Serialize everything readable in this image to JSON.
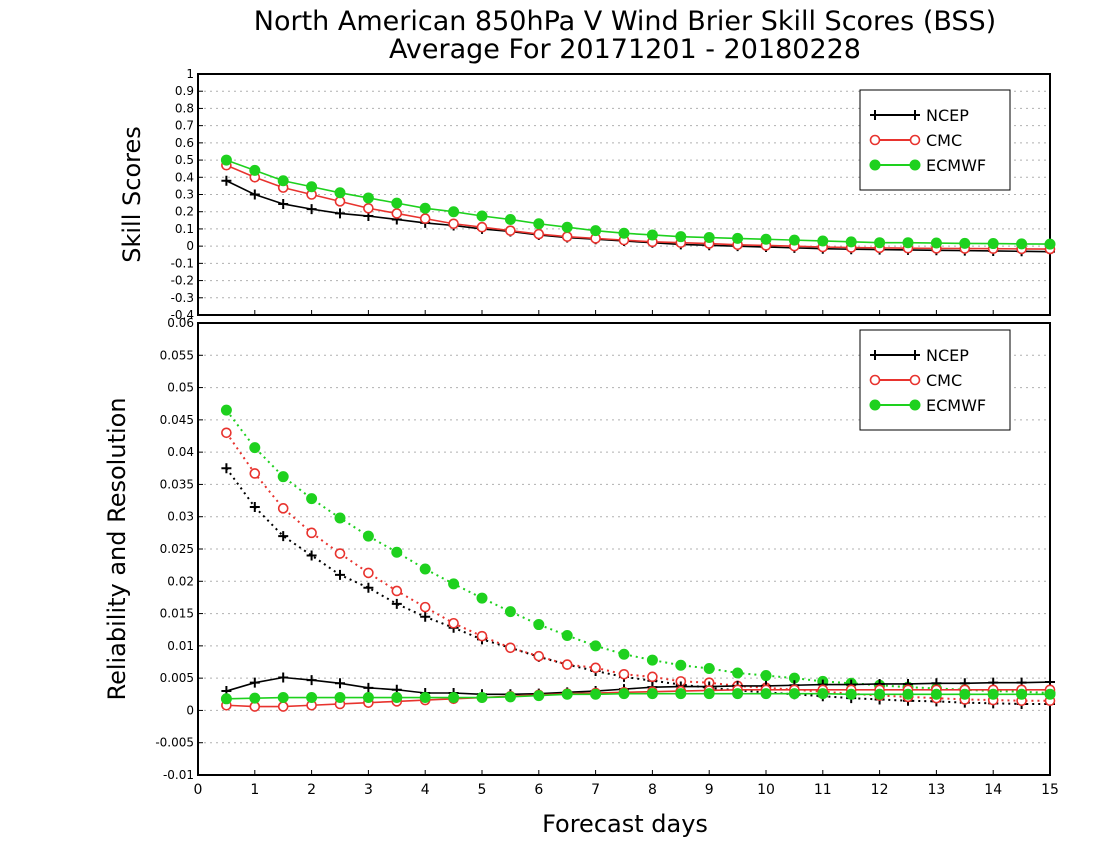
{
  "figure": {
    "title_line1": "North American 850hPa V Wind Brier Skill Scores (BSS)",
    "title_line2": "Average For 20171201 - 20180228",
    "xlabel": "Forecast days"
  },
  "colors": {
    "NCEP": "#000000",
    "CMC": "#e8332e",
    "ECMWF": "#1ed11e"
  },
  "chart_data": [
    {
      "type": "line",
      "ylabel": "Skill Scores",
      "xlim": [
        0,
        15
      ],
      "ylim": [
        -0.4,
        1
      ],
      "x_ticks": [
        "0",
        "1",
        "2",
        "3",
        "4",
        "5",
        "6",
        "7",
        "8",
        "9",
        "10",
        "11",
        "12",
        "13",
        "14",
        "15"
      ],
      "y_ticks": [
        "-0.4",
        "-0.3",
        "-0.2",
        "-0.1",
        "0",
        "0.1",
        "0.2",
        "0.3",
        "0.4",
        "0.5",
        "0.6",
        "0.7",
        "0.8",
        "0.9",
        "1"
      ],
      "legend_position": "top-right",
      "legend": [
        "NCEP",
        "CMC",
        "ECMWF"
      ],
      "x": [
        0.5,
        1,
        1.5,
        2,
        2.5,
        3,
        3.5,
        4,
        4.5,
        5,
        5.5,
        6,
        6.5,
        7,
        7.5,
        8,
        8.5,
        9,
        9.5,
        10,
        10.5,
        11,
        11.5,
        12,
        12.5,
        13,
        13.5,
        14,
        14.5,
        15
      ],
      "series": [
        {
          "name": "NCEP",
          "style": "solid",
          "marker": "plus",
          "values": [
            0.38,
            0.3,
            0.245,
            0.215,
            0.19,
            0.175,
            0.155,
            0.135,
            0.12,
            0.1,
            0.085,
            0.065,
            0.05,
            0.04,
            0.03,
            0.02,
            0.01,
            0.005,
            0.0,
            -0.005,
            -0.01,
            -0.015,
            -0.018,
            -0.02,
            -0.022,
            -0.024,
            -0.026,
            -0.028,
            -0.03,
            -0.032
          ]
        },
        {
          "name": "CMC",
          "style": "solid",
          "marker": "open-circle",
          "values": [
            0.47,
            0.4,
            0.34,
            0.3,
            0.26,
            0.22,
            0.19,
            0.16,
            0.13,
            0.11,
            0.09,
            0.07,
            0.055,
            0.045,
            0.035,
            0.025,
            0.02,
            0.015,
            0.008,
            0.004,
            0.0,
            -0.005,
            -0.008,
            -0.01,
            -0.012,
            -0.013,
            -0.014,
            -0.015,
            -0.016,
            -0.017
          ]
        },
        {
          "name": "ECMWF",
          "style": "solid",
          "marker": "filled-circle",
          "values": [
            0.5,
            0.44,
            0.38,
            0.345,
            0.31,
            0.28,
            0.25,
            0.22,
            0.2,
            0.175,
            0.155,
            0.13,
            0.11,
            0.09,
            0.075,
            0.065,
            0.055,
            0.05,
            0.045,
            0.04,
            0.035,
            0.03,
            0.025,
            0.02,
            0.02,
            0.018,
            0.016,
            0.015,
            0.013,
            0.012
          ]
        }
      ]
    },
    {
      "type": "line",
      "ylabel": "Reliability and Resolution",
      "xlim": [
        0,
        15
      ],
      "ylim": [
        -0.01,
        0.06
      ],
      "x_ticks": [
        "0",
        "1",
        "2",
        "3",
        "4",
        "5",
        "6",
        "7",
        "8",
        "9",
        "10",
        "11",
        "12",
        "13",
        "14",
        "15"
      ],
      "y_ticks": [
        "-0.01",
        "-0.005",
        "0",
        "0.005",
        "0.01",
        "0.015",
        "0.02",
        "0.025",
        "0.03",
        "0.035",
        "0.04",
        "0.045",
        "0.05",
        "0.055",
        "0.06"
      ],
      "legend_position": "top-right",
      "legend": [
        "NCEP",
        "CMC",
        "ECMWF"
      ],
      "x": [
        0.5,
        1,
        1.5,
        2,
        2.5,
        3,
        3.5,
        4,
        4.5,
        5,
        5.5,
        6,
        6.5,
        7,
        7.5,
        8,
        8.5,
        9,
        9.5,
        10,
        10.5,
        11,
        11.5,
        12,
        12.5,
        13,
        13.5,
        14,
        14.5,
        15
      ],
      "series": [
        {
          "name": "NCEP",
          "style": "dotted",
          "marker": "plus",
          "values": [
            0.0375,
            0.0315,
            0.027,
            0.024,
            0.021,
            0.019,
            0.0165,
            0.0145,
            0.0128,
            0.011,
            0.0097,
            0.0083,
            0.0071,
            0.0061,
            0.0052,
            0.0046,
            0.004,
            0.0035,
            0.0031,
            0.0028,
            0.0025,
            0.0022,
            0.0019,
            0.0017,
            0.0015,
            0.0014,
            0.0012,
            0.0011,
            0.001,
            0.001
          ]
        },
        {
          "name": "CMC",
          "style": "dotted",
          "marker": "open-circle",
          "values": [
            0.043,
            0.0367,
            0.0313,
            0.0275,
            0.0243,
            0.0213,
            0.0185,
            0.016,
            0.0135,
            0.0115,
            0.0097,
            0.0084,
            0.0071,
            0.0066,
            0.0056,
            0.0052,
            0.0045,
            0.0043,
            0.0038,
            0.0035,
            0.0032,
            0.0029,
            0.0026,
            0.0023,
            0.0021,
            0.0019,
            0.0017,
            0.0016,
            0.0015,
            0.0015
          ]
        },
        {
          "name": "ECMWF",
          "style": "dotted",
          "marker": "filled-circle",
          "values": [
            0.0465,
            0.0407,
            0.0362,
            0.0328,
            0.0298,
            0.027,
            0.0245,
            0.0219,
            0.0196,
            0.0174,
            0.0153,
            0.0133,
            0.0116,
            0.01,
            0.0087,
            0.0078,
            0.007,
            0.0065,
            0.0058,
            0.0054,
            0.005,
            0.0045,
            0.0042,
            0.0039,
            0.0036,
            0.0034,
            0.0032,
            0.003,
            0.0029,
            0.0027
          ]
        },
        {
          "name": "NCEP",
          "style": "solid",
          "marker": "plus",
          "values": [
            0.003,
            0.0043,
            0.0051,
            0.0047,
            0.0042,
            0.0035,
            0.0032,
            0.0027,
            0.0027,
            0.0025,
            0.0025,
            0.0026,
            0.0028,
            0.003,
            0.0033,
            0.0036,
            0.0037,
            0.0037,
            0.0038,
            0.0038,
            0.0039,
            0.004,
            0.004,
            0.0041,
            0.0041,
            0.0042,
            0.0042,
            0.0043,
            0.0043,
            0.0044
          ]
        },
        {
          "name": "CMC",
          "style": "solid",
          "marker": "open-circle",
          "values": [
            0.0008,
            0.0006,
            0.0006,
            0.0008,
            0.001,
            0.0012,
            0.0014,
            0.0016,
            0.0018,
            0.002,
            0.0022,
            0.0024,
            0.0026,
            0.0027,
            0.0028,
            0.0029,
            0.003,
            0.0031,
            0.0032,
            0.0032,
            0.0032,
            0.0032,
            0.0032,
            0.0032,
            0.0032,
            0.0032,
            0.0032,
            0.0032,
            0.0032,
            0.0032
          ]
        },
        {
          "name": "ECMWF",
          "style": "solid",
          "marker": "filled-circle",
          "values": [
            0.0018,
            0.0019,
            0.002,
            0.002,
            0.002,
            0.002,
            0.002,
            0.002,
            0.002,
            0.002,
            0.0021,
            0.0023,
            0.0025,
            0.0025,
            0.0026,
            0.0026,
            0.0026,
            0.0026,
            0.0026,
            0.0026,
            0.0026,
            0.0026,
            0.0025,
            0.0025,
            0.0025,
            0.0025,
            0.0025,
            0.0025,
            0.0025,
            0.0025
          ]
        }
      ]
    }
  ]
}
